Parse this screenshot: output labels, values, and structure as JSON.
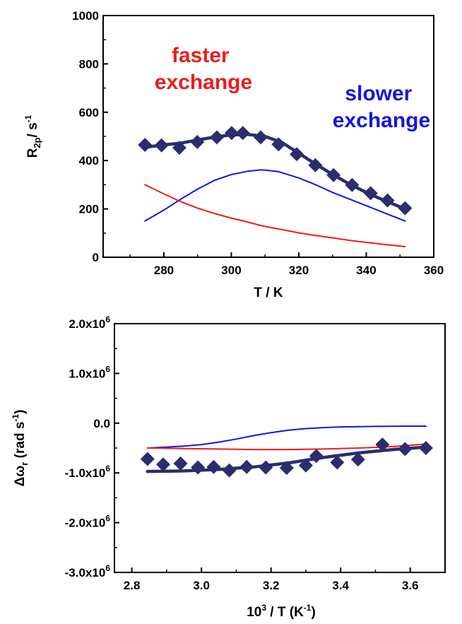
{
  "colors": {
    "data": "#2b2d6e",
    "fit": "#2b2d6e",
    "fast": "#ee1c1c",
    "slow": "#1515e0",
    "axis": "#000000"
  },
  "chart_data": [
    {
      "type": "scatter",
      "ylabel": {
        "main": "R",
        "sub": "2p",
        "unit": "/ s",
        "sup": "-1"
      },
      "xlabel": "T / K",
      "xlim": [
        262,
        360
      ],
      "ylim": [
        0,
        1000
      ],
      "x_ticks": [
        280,
        300,
        320,
        340,
        360
      ],
      "x_tick_labels": [
        "280",
        "300",
        "320",
        "340",
        "360"
      ],
      "y_ticks": [
        0,
        200,
        400,
        600,
        800,
        1000
      ],
      "y_tick_labels": [
        "0",
        "200",
        "400",
        "600",
        "800",
        "1000"
      ],
      "annotations": [
        {
          "lines": [
            "faster",
            "exchange"
          ],
          "color": "#ee1c1c"
        },
        {
          "lines": [
            "slower",
            "exchange"
          ],
          "color": "#1515e0"
        }
      ],
      "series": [
        {
          "role": "data",
          "marker": "diamond",
          "x": [
            274.4,
            279.3,
            284.6,
            289.9,
            295.7,
            300.1,
            303.4,
            308.7,
            314.0,
            319.4,
            324.9,
            330.3,
            335.8,
            341.3,
            346.3,
            351.5
          ],
          "y": [
            465,
            463,
            453,
            477,
            496,
            514,
            514,
            496,
            467,
            426,
            381,
            340,
            299,
            265,
            235,
            203
          ]
        },
        {
          "role": "fit",
          "line": "thick",
          "x": [
            274.4,
            280,
            285,
            290,
            295,
            300,
            305,
            310,
            315,
            320,
            325,
            330,
            335,
            340,
            345,
            351.5
          ],
          "y": [
            455,
            465,
            472,
            485,
            497,
            506,
            508,
            500,
            475,
            430,
            385,
            343,
            303,
            268,
            237,
            200
          ]
        },
        {
          "role": "slower",
          "line": "thin",
          "x": [
            274.4,
            280,
            285,
            290,
            295,
            300,
            305,
            309,
            314,
            320,
            325,
            330,
            336,
            341,
            346,
            351.5
          ],
          "y": [
            150,
            195,
            240,
            282,
            318,
            342,
            356,
            362,
            354,
            328,
            300,
            268,
            235,
            208,
            180,
            150
          ]
        },
        {
          "role": "faster",
          "line": "thin",
          "x": [
            274.4,
            280,
            285,
            290,
            295,
            300,
            305,
            309,
            314,
            320,
            325,
            330,
            336,
            341,
            346,
            351.5
          ],
          "y": [
            300,
            262,
            230,
            203,
            181,
            162,
            145,
            130,
            117,
            101,
            90,
            80,
            68,
            60,
            52,
            44
          ]
        }
      ]
    },
    {
      "type": "scatter",
      "ylabel": {
        "main": "Δω",
        "sub": "r",
        "unit": " (rad s",
        "sup": "-1",
        "close": ")"
      },
      "xlabel": {
        "pre": "10",
        "sup": "3",
        "mid": " / T (K",
        "sup2": "-1",
        "close": ")"
      },
      "xlim": [
        2.75,
        3.7
      ],
      "ylim": [
        -3000000,
        2000000
      ],
      "x_ticks": [
        2.8,
        3.0,
        3.2,
        3.4,
        3.6
      ],
      "x_tick_labels": [
        "2.8",
        "3.0",
        "3.2",
        "3.4",
        "3.6"
      ],
      "y_ticks": [
        2000000,
        1000000,
        0,
        -1000000,
        -2000000,
        -3000000
      ],
      "y_tick_labels": [
        {
          "text": "2.0x10",
          "sup": "6"
        },
        {
          "text": "1.0x10",
          "sup": "6"
        },
        {
          "text": "0.0",
          "sup": ""
        },
        {
          "text": "-1.0x10",
          "sup": "6"
        },
        {
          "text": "-2.0x10",
          "sup": "6"
        },
        {
          "text": "-3.0x10",
          "sup": "6"
        }
      ],
      "series": [
        {
          "role": "data",
          "marker": "diamond",
          "x": [
            2.845,
            2.89,
            2.94,
            2.99,
            3.035,
            3.08,
            3.13,
            3.185,
            3.245,
            3.3,
            3.33,
            3.39,
            3.45,
            3.52,
            3.585,
            3.645
          ],
          "y": [
            -720000,
            -830000,
            -810000,
            -890000,
            -880000,
            -950000,
            -880000,
            -890000,
            -900000,
            -850000,
            -660000,
            -790000,
            -730000,
            -430000,
            -520000,
            -500000
          ]
        },
        {
          "role": "fit",
          "line": "thick",
          "x": [
            2.845,
            2.95,
            3.05,
            3.15,
            3.25,
            3.35,
            3.45,
            3.55,
            3.645
          ],
          "y": [
            -970000,
            -960000,
            -930000,
            -880000,
            -800000,
            -690000,
            -600000,
            -530000,
            -480000
          ]
        },
        {
          "role": "slower",
          "line": "thin",
          "x": [
            2.845,
            2.9,
            2.95,
            3.0,
            3.05,
            3.1,
            3.15,
            3.2,
            3.25,
            3.3,
            3.35,
            3.4,
            3.5,
            3.6,
            3.645
          ],
          "y": [
            -500000,
            -480000,
            -460000,
            -430000,
            -380000,
            -320000,
            -250000,
            -190000,
            -140000,
            -110000,
            -90000,
            -75000,
            -65000,
            -60000,
            -60000
          ]
        },
        {
          "role": "faster",
          "line": "thin",
          "x": [
            2.845,
            2.95,
            3.05,
            3.15,
            3.25,
            3.35,
            3.45,
            3.55,
            3.645
          ],
          "y": [
            -500000,
            -510000,
            -520000,
            -530000,
            -530000,
            -520000,
            -500000,
            -470000,
            -420000
          ]
        }
      ]
    }
  ]
}
